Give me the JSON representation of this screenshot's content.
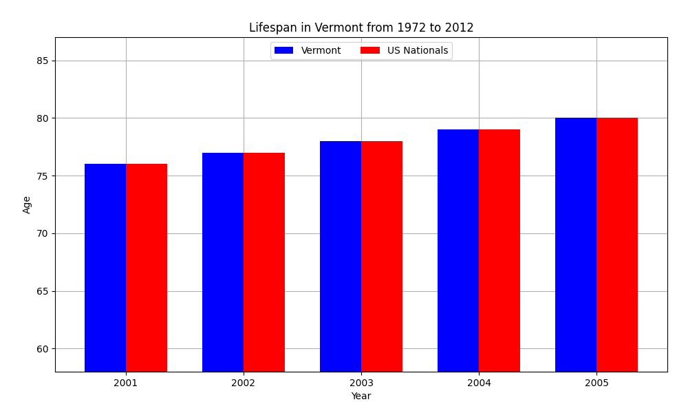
{
  "chart_data": {
    "type": "bar",
    "title": "Lifespan in Vermont from 1972 to 2012",
    "x_label": "Year",
    "y_label": "Age",
    "categories": [
      "2001",
      "2002",
      "2003",
      "2004",
      "2005"
    ],
    "series": [
      {
        "name": "Vermont",
        "color": "#0000ff",
        "values": [
          76,
          77,
          78,
          79,
          80
        ]
      },
      {
        "name": "US Nationals",
        "color": "#ff0000",
        "values": [
          76,
          77,
          78,
          79,
          80
        ]
      }
    ],
    "ylim": [
      58,
      87
    ],
    "yticks": [
      60,
      65,
      70,
      75,
      80,
      85
    ],
    "grid": true,
    "legend": "upper center"
  }
}
